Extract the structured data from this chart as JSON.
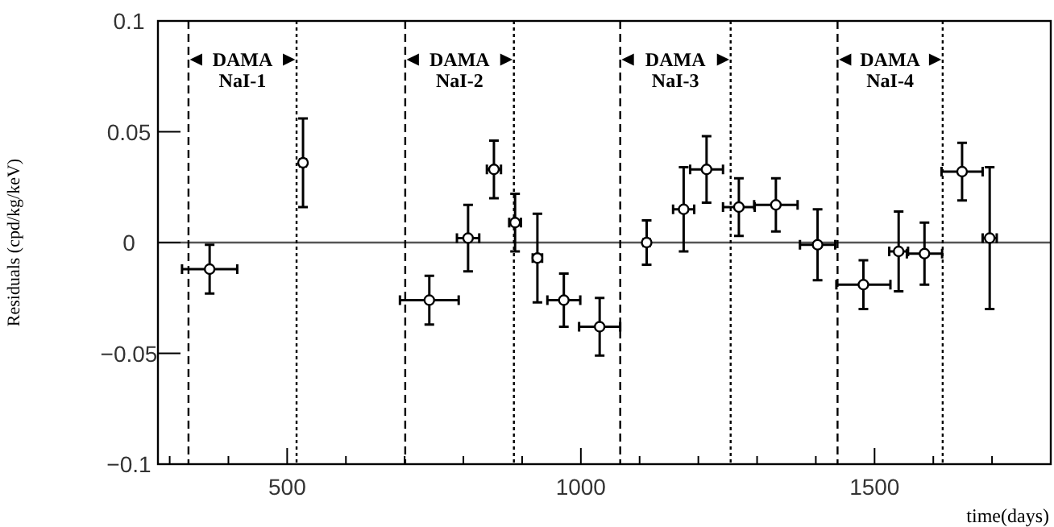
{
  "chart_data": {
    "type": "scatter",
    "xlabel": "time(days)",
    "ylabel": "Residuals (cpd/kg/keV)",
    "x": [
      368,
      527,
      742,
      808,
      852,
      888,
      926,
      971,
      1032,
      1112,
      1175,
      1214,
      1269,
      1332,
      1403,
      1481,
      1541,
      1585,
      1649,
      1696
    ],
    "values": [
      -0.012,
      0.036,
      -0.026,
      0.002,
      0.033,
      0.009,
      -0.007,
      -0.026,
      -0.038,
      0,
      0.015,
      0.033,
      0.016,
      0.017,
      -0.001,
      -0.019,
      -0.004,
      -0.005,
      0.032,
      0.002
    ],
    "errors": [
      0.011,
      0.02,
      0.011,
      0.015,
      0.013,
      0.013,
      0.02,
      0.012,
      0.013,
      0.01,
      0.019,
      0.015,
      0.013,
      0.012,
      0.016,
      0.011,
      0.018,
      0.014,
      0.013,
      0.032
    ],
    "xerrors": [
      47,
      5,
      50,
      19,
      12,
      10,
      8,
      28,
      35,
      5,
      18,
      28,
      27,
      37,
      30,
      46,
      16,
      30,
      35,
      12
    ],
    "color": "#000000",
    "marker": "circle",
    "grid": false,
    "xlim": [
      280,
      1800
    ],
    "xticks": [
      {
        "value": 300,
        "label": null
      },
      {
        "value": 400,
        "label": null
      },
      500,
      {
        "value": 600,
        "label": null
      },
      {
        "value": 700,
        "label": null
      },
      {
        "value": 800,
        "label": null
      },
      {
        "value": 900,
        "label": null
      },
      1000,
      {
        "value": 1100,
        "label": null
      },
      {
        "value": 1200,
        "label": null
      },
      {
        "value": 1300,
        "label": null
      },
      {
        "value": 1400,
        "label": null
      },
      1500,
      {
        "value": 1600,
        "label": null
      },
      {
        "value": 1700,
        "label": null
      }
    ],
    "ylim": [
      -0.1,
      0.1
    ],
    "yticks": [
      {
        "value": -0.1,
        "label": "−0.1"
      },
      {
        "value": -0.05,
        "label": "−0.05"
      },
      0,
      0.05,
      0.1
    ],
    "ref_lines": [
      {
        "axis": "y",
        "value": 0,
        "line_style": "solid"
      },
      {
        "axis": "x",
        "value": 332,
        "line_style": "dashed"
      },
      {
        "axis": "x",
        "value": 516,
        "line_style": "dotted"
      },
      {
        "axis": "x",
        "value": 701,
        "line_style": "dashed"
      },
      {
        "axis": "x",
        "value": 886,
        "line_style": "dotted"
      },
      {
        "axis": "x",
        "value": 1067,
        "line_style": "dashed"
      },
      {
        "axis": "x",
        "value": 1255,
        "line_style": "dotted"
      },
      {
        "axis": "x",
        "value": 1437,
        "line_style": "dashed"
      },
      {
        "axis": "x",
        "value": 1616,
        "line_style": "dotted"
      }
    ],
    "annotations": [
      "DAMA NaI-1",
      "DAMA NaI-2",
      "DAMA NaI-3",
      "DAMA NaI-4"
    ]
  }
}
